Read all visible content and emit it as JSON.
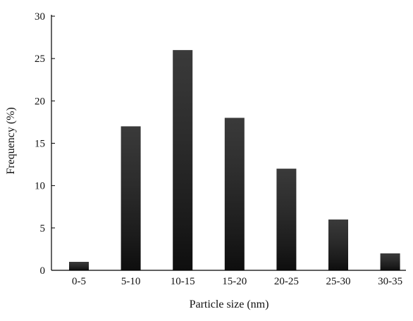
{
  "chart_data": {
    "type": "bar",
    "title": "",
    "xlabel": "Particle size (nm)",
    "ylabel": "Frequency (%)",
    "categories": [
      "0-5",
      "5-10",
      "10-15",
      "15-20",
      "20-25",
      "25-30",
      "30-35"
    ],
    "values": [
      1,
      17,
      26,
      18,
      12,
      6,
      2
    ],
    "ylim": [
      0,
      30
    ],
    "yticks": [
      "0",
      "5",
      "10",
      "15",
      "20",
      "25",
      "30"
    ],
    "grid": false,
    "legend": "none",
    "colors": {
      "bar_top": "#3a3a3a",
      "bar_bottom": "#111111",
      "axis": "#000000"
    }
  }
}
